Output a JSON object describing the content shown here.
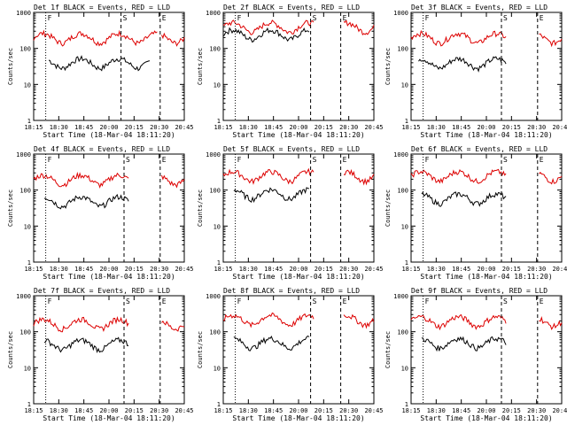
{
  "colors": {
    "events": "#000000",
    "lld": "#dd0000",
    "frame": "#000000",
    "background": "#ffffff"
  },
  "shared": {
    "xlabel": "Start Time (18-Mar-04 18:11:20)",
    "ylabel": "Counts/sec",
    "x_ticks": [
      "18:15",
      "18:30",
      "18:45",
      "20:00",
      "20:15",
      "20:30",
      "20:45"
    ],
    "y_ticks": [
      "1",
      "10",
      "100",
      "1000"
    ],
    "markers": [
      "F",
      "S",
      "E"
    ],
    "legend_note": "BLACK = Events, RED = LLD"
  },
  "chart_data": [
    {
      "type": "line",
      "title": "Det 1f BLACK = Events, RED = LLD",
      "scale": "log",
      "ylim": [
        1,
        1000
      ],
      "x": [
        "18:15",
        "18:30",
        "18:45",
        "20:00",
        "20:15",
        "20:30",
        "20:45"
      ],
      "series": [
        {
          "name": "Events",
          "approx_level": 40,
          "color": "black",
          "segments": [
            [
              0.1,
              0.77
            ]
          ]
        },
        {
          "name": "LLD",
          "approx_level": 200,
          "color": "red",
          "segments": [
            [
              0.0,
              0.82
            ],
            [
              0.85,
              1.0
            ]
          ]
        }
      ],
      "markers": [
        {
          "label": "F",
          "pos": 0.08
        },
        {
          "label": "S",
          "pos": 0.58
        },
        {
          "label": "E",
          "pos": 0.84
        }
      ]
    },
    {
      "type": "line",
      "title": "Det 2f BLACK = Events, RED = LLD",
      "scale": "log",
      "ylim": [
        1,
        1000
      ],
      "x": [
        "18:15",
        "18:30",
        "18:45",
        "20:00",
        "20:15",
        "20:30",
        "20:45"
      ],
      "series": [
        {
          "name": "Events",
          "approx_level": 250,
          "color": "black",
          "segments": [
            [
              0.0,
              0.57
            ]
          ]
        },
        {
          "name": "LLD",
          "approx_level": 400,
          "color": "red",
          "segments": [
            [
              0.0,
              0.6
            ],
            [
              0.8,
              1.0
            ]
          ]
        }
      ],
      "markers": [
        {
          "label": "F",
          "pos": 0.08
        },
        {
          "label": "S",
          "pos": 0.58
        },
        {
          "label": "E",
          "pos": 0.78
        }
      ]
    },
    {
      "type": "line",
      "title": "Det 3f BLACK = Events, RED = LLD",
      "scale": "log",
      "ylim": [
        1,
        1000
      ],
      "x": [
        "18:15",
        "18:30",
        "18:45",
        "20:00",
        "20:15",
        "20:30",
        "20:45"
      ],
      "series": [
        {
          "name": "Events",
          "approx_level": 40,
          "color": "black",
          "segments": [
            [
              0.05,
              0.63
            ]
          ]
        },
        {
          "name": "LLD",
          "approx_level": 200,
          "color": "red",
          "segments": [
            [
              0.0,
              0.63
            ],
            [
              0.85,
              1.0
            ]
          ]
        }
      ],
      "markers": [
        {
          "label": "F",
          "pos": 0.08
        },
        {
          "label": "S",
          "pos": 0.6
        },
        {
          "label": "E",
          "pos": 0.84
        }
      ]
    },
    {
      "type": "line",
      "title": "Det 4f BLACK = Events, RED = LLD",
      "scale": "log",
      "ylim": [
        1,
        1000
      ],
      "x": [
        "18:15",
        "18:30",
        "18:45",
        "20:00",
        "20:15",
        "20:30",
        "20:45"
      ],
      "series": [
        {
          "name": "Events",
          "approx_level": 50,
          "color": "black",
          "segments": [
            [
              0.07,
              0.63
            ]
          ]
        },
        {
          "name": "LLD",
          "approx_level": 200,
          "color": "red",
          "segments": [
            [
              0.0,
              0.63
            ],
            [
              0.85,
              1.0
            ]
          ]
        }
      ],
      "markers": [
        {
          "label": "F",
          "pos": 0.08
        },
        {
          "label": "S",
          "pos": 0.6
        },
        {
          "label": "E",
          "pos": 0.84
        }
      ]
    },
    {
      "type": "line",
      "title": "Det 5f BLACK = Events, RED = LLD",
      "scale": "log",
      "ylim": [
        1,
        1000
      ],
      "x": [
        "18:15",
        "18:30",
        "18:45",
        "20:00",
        "20:15",
        "20:30",
        "20:45"
      ],
      "series": [
        {
          "name": "Events",
          "approx_level": 80,
          "color": "black",
          "segments": [
            [
              0.07,
              0.57
            ]
          ]
        },
        {
          "name": "LLD",
          "approx_level": 250,
          "color": "red",
          "segments": [
            [
              0.0,
              0.6
            ],
            [
              0.8,
              1.0
            ]
          ]
        }
      ],
      "markers": [
        {
          "label": "F",
          "pos": 0.08
        },
        {
          "label": "S",
          "pos": 0.58
        },
        {
          "label": "E",
          "pos": 0.78
        }
      ]
    },
    {
      "type": "line",
      "title": "Det 6f BLACK = Events, RED = LLD",
      "scale": "log",
      "ylim": [
        1,
        1000
      ],
      "x": [
        "18:15",
        "18:30",
        "18:45",
        "20:00",
        "20:15",
        "20:30",
        "20:45"
      ],
      "series": [
        {
          "name": "Events",
          "approx_level": 60,
          "color": "black",
          "segments": [
            [
              0.07,
              0.63
            ]
          ]
        },
        {
          "name": "LLD",
          "approx_level": 250,
          "color": "red",
          "segments": [
            [
              0.0,
              0.63
            ],
            [
              0.85,
              1.0
            ]
          ]
        }
      ],
      "markers": [
        {
          "label": "F",
          "pos": 0.08
        },
        {
          "label": "S",
          "pos": 0.6
        },
        {
          "label": "E",
          "pos": 0.84
        }
      ]
    },
    {
      "type": "line",
      "title": "Det 7f BLACK = Events, RED = LLD",
      "scale": "log",
      "ylim": [
        1,
        1000
      ],
      "x": [
        "18:15",
        "18:30",
        "18:45",
        "20:00",
        "20:15",
        "20:30",
        "20:45"
      ],
      "series": [
        {
          "name": "Events",
          "approx_level": 45,
          "color": "black",
          "segments": [
            [
              0.07,
              0.63
            ]
          ]
        },
        {
          "name": "LLD",
          "approx_level": 170,
          "color": "red",
          "segments": [
            [
              0.0,
              0.63
            ],
            [
              0.85,
              1.0
            ]
          ]
        }
      ],
      "markers": [
        {
          "label": "F",
          "pos": 0.08
        },
        {
          "label": "S",
          "pos": 0.6
        },
        {
          "label": "E",
          "pos": 0.84
        }
      ]
    },
    {
      "type": "line",
      "title": "Det 8f BLACK = Events, RED = LLD",
      "scale": "log",
      "ylim": [
        1,
        1000
      ],
      "x": [
        "18:15",
        "18:30",
        "18:45",
        "20:00",
        "20:15",
        "20:30",
        "20:45"
      ],
      "series": [
        {
          "name": "Events",
          "approx_level": 50,
          "color": "black",
          "segments": [
            [
              0.07,
              0.57
            ]
          ]
        },
        {
          "name": "LLD",
          "approx_level": 220,
          "color": "red",
          "segments": [
            [
              0.0,
              0.6
            ],
            [
              0.8,
              1.0
            ]
          ]
        }
      ],
      "markers": [
        {
          "label": "F",
          "pos": 0.08
        },
        {
          "label": "S",
          "pos": 0.58
        },
        {
          "label": "E",
          "pos": 0.78
        }
      ]
    },
    {
      "type": "line",
      "title": "Det 9f BLACK = Events, RED = LLD",
      "scale": "log",
      "ylim": [
        1,
        1000
      ],
      "x": [
        "18:15",
        "18:30",
        "18:45",
        "20:00",
        "20:15",
        "20:30",
        "20:45"
      ],
      "series": [
        {
          "name": "Events",
          "approx_level": 50,
          "color": "black",
          "segments": [
            [
              0.07,
              0.63
            ]
          ]
        },
        {
          "name": "LLD",
          "approx_level": 200,
          "color": "red",
          "segments": [
            [
              0.0,
              0.63
            ],
            [
              0.85,
              1.0
            ]
          ]
        }
      ],
      "markers": [
        {
          "label": "F",
          "pos": 0.08
        },
        {
          "label": "S",
          "pos": 0.6
        },
        {
          "label": "E",
          "pos": 0.84
        }
      ]
    }
  ]
}
